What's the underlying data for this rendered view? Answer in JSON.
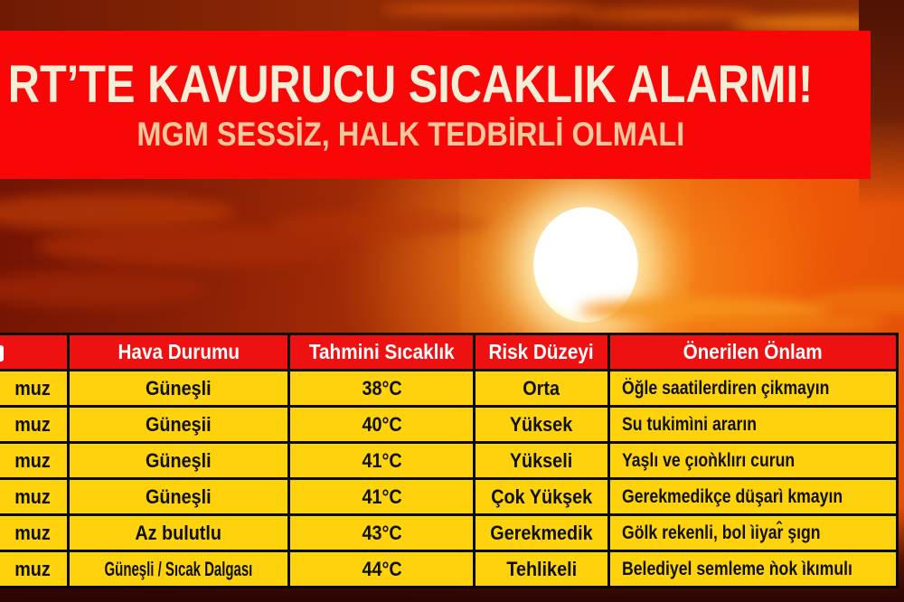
{
  "banner": {
    "headline": "RT’TE KAVURUCU SICAKLIK ALARMI!",
    "subtitle": "MGM SESSİZ, HALK TEDBİRLİ OLMALI"
  },
  "table": {
    "columns": [
      "",
      "Hava Durumu",
      "Tahmini Sıcaklık",
      "Risk Düzeyi",
      "Önerilen Önlam"
    ],
    "rows": [
      {
        "date": "muz",
        "weather": "Güneşli",
        "temp": "38°C",
        "risk": "Orta",
        "advice": "Öğle saatilerdiren çikmayın"
      },
      {
        "date": "muz",
        "weather": "Güneşii",
        "temp": "40°C",
        "risk": "Yüksek",
        "advice": "Su tukimìni ararın"
      },
      {
        "date": "muz",
        "weather": "Güneşli",
        "temp": "41°C",
        "risk": "Yükseli",
        "advice": "Yaşlı ve çıoǹklırı curun"
      },
      {
        "date": "muz",
        "weather": "Güneşli",
        "temp": "41°C",
        "risk": "Çok Yükşek",
        "advice": "Gerekmedikçe düşarì kmayın"
      },
      {
        "date": "muz",
        "weather": "Az bulutlu",
        "temp": "43°C",
        "risk": "Gerekmedik",
        "advice": "Gölk rekenli, bol ìiyar̂ şıgn"
      },
      {
        "date": "muz",
        "weather": "Güneşli / Sıcak Dalgası",
        "temp": "44°C",
        "risk": "Tehlikeli",
        "advice": "Belediyel semleme ǹok ìkımulı"
      }
    ]
  },
  "colors": {
    "banner_red": "#f90707",
    "header_red": "#ee1111",
    "cell_yellow": "#fed30d",
    "headline_cream": "#f6edd6",
    "subtitle_peach": "#f1c79b"
  },
  "chart_data": {
    "type": "table",
    "title": "RT’TE KAVURUCU SICAKLIK ALARMI!",
    "subtitle": "MGM SESSİZ, HALK TEDBİRLİ OLMALI",
    "columns": [
      "",
      "Hava Durumu",
      "Tahmini Sıcaklık",
      "Risk Düzeyi",
      "Önerilen Önlam"
    ],
    "rows": [
      [
        "muz",
        "Güneşli",
        "38°C",
        "Orta",
        "Öğle saatilerdiren çikmayın"
      ],
      [
        "muz",
        "Güneşii",
        "40°C",
        "Yüksek",
        "Su tukimìni ararın"
      ],
      [
        "muz",
        "Güneşli",
        "41°C",
        "Yükseli",
        "Yaşlı ve çıoǹklırı curun"
      ],
      [
        "muz",
        "Güneşli",
        "41°C",
        "Çok Yükşek",
        "Gerekmedikçe düşarì kmayın"
      ],
      [
        "muz",
        "Az bulutlu",
        "43°C",
        "Gerekmedik",
        "Gölk rekenli, bol ìiyar̂ şıgn"
      ],
      [
        "muz",
        "Güneşli / Sıcak Dalgası",
        "44°C",
        "Tehlikeli",
        "Belediyel semleme ǹok ìkımulı"
      ]
    ],
    "temperatures_c": [
      38,
      40,
      41,
      41,
      43,
      44
    ]
  }
}
